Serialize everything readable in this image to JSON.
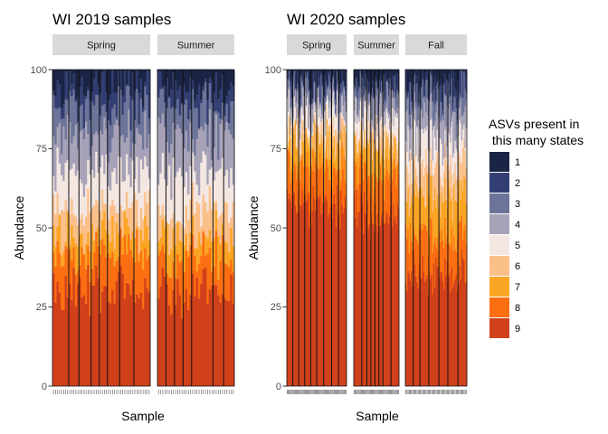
{
  "colors": {
    "1": "#1a2444",
    "2": "#333f72",
    "3": "#6c7499",
    "4": "#a7a2b7",
    "5": "#f4e7e2",
    "6": "#fbc08a",
    "7": "#fba524",
    "8": "#fb6e12",
    "9": "#d0401b",
    "strip": "#d9d9d9"
  },
  "legend": {
    "title_line1": "ASVs present in",
    "title_line2": " this many states",
    "items": [
      "1",
      "2",
      "3",
      "4",
      "5",
      "6",
      "7",
      "8",
      "9"
    ]
  },
  "chart_data": [
    {
      "type": "bar",
      "stacked": true,
      "title": "WI 2019 samples",
      "xlabel": "Sample",
      "ylabel": "Abundance",
      "ylim": [
        0,
        100
      ],
      "yticks": [
        "0",
        "25",
        "50",
        "75",
        "100"
      ],
      "facets": [
        {
          "name": "Spring",
          "n_samples": 48,
          "group_sizes": [
            8,
            5,
            6,
            4,
            4,
            6,
            7,
            8
          ],
          "mean_cumulative": [
            30,
            41,
            48,
            56,
            67,
            79,
            88,
            95,
            100
          ]
        },
        {
          "name": "Summer",
          "n_samples": 36,
          "group_sizes": [
            4,
            4,
            4,
            4,
            10,
            5,
            5
          ],
          "mean_cumulative": [
            30,
            41,
            48,
            56,
            67,
            79,
            88,
            95,
            100
          ]
        }
      ]
    },
    {
      "type": "bar",
      "stacked": true,
      "title": "WI 2020 samples",
      "xlabel": "Sample",
      "ylabel": "Abundance",
      "ylim": [
        0,
        100
      ],
      "yticks": [
        "0",
        "25",
        "50",
        "75",
        "100"
      ],
      "facets": [
        {
          "name": "Spring",
          "n_samples": 60,
          "group_sizes": [
            6,
            6,
            6,
            6,
            6,
            7,
            8,
            7,
            8
          ],
          "mean_cumulative": [
            58,
            69,
            77,
            81,
            86,
            90,
            94,
            97,
            100
          ]
        },
        {
          "name": "Summer",
          "n_samples": 45,
          "group_sizes": [
            8,
            5,
            4,
            4,
            4,
            4,
            8,
            8
          ],
          "mean_cumulative": [
            55,
            67,
            76,
            80,
            85,
            89,
            93,
            96,
            100
          ]
        },
        {
          "name": "Fall",
          "n_samples": 55,
          "group_sizes": [
            7,
            6,
            8,
            9,
            8,
            9,
            8
          ],
          "mean_cumulative": [
            35,
            47,
            60,
            70,
            78,
            86,
            92,
            96,
            100
          ]
        }
      ]
    }
  ]
}
